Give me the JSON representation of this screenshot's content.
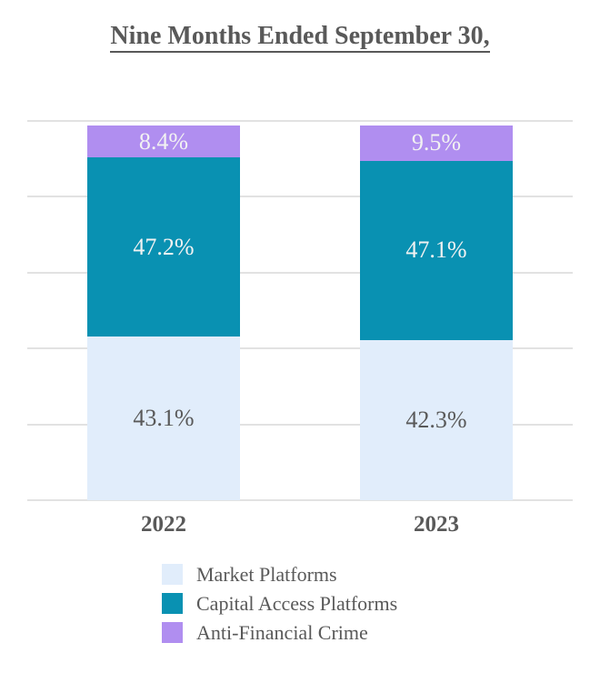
{
  "title": "Nine Months Ended September 30,",
  "colors": {
    "market_platforms": "#E1EDFB",
    "capital_access_platforms": "#0991B2",
    "anti_financial_crime": "#B08EF0",
    "gridline": "#E2E2E2",
    "text_gray": "#595959",
    "label_on_dark": "#F2F2F2"
  },
  "chart_data": {
    "type": "bar",
    "stacked": true,
    "title": "Nine Months Ended September 30,",
    "categories": [
      "2022",
      "2023"
    ],
    "series": [
      {
        "name": "Market Platforms",
        "values": [
          43.1,
          42.3
        ],
        "color": "#E1EDFB",
        "label_color": "#595959"
      },
      {
        "name": "Capital Access Platforms",
        "values": [
          47.2,
          47.1
        ],
        "color": "#0991B2",
        "label_color": "#F2F2F2"
      },
      {
        "name": "Anti-Financial Crime",
        "values": [
          8.4,
          9.5
        ],
        "color": "#B08EF0",
        "label_color": "#F2F2F2"
      }
    ],
    "value_suffix": "%",
    "value_decimals": 1,
    "ylim": [
      0,
      100
    ],
    "gridlines": [
      0,
      20,
      40,
      60,
      80,
      100
    ],
    "grid": true,
    "y_axis_labels_visible": false,
    "legend_position": "bottom-left"
  }
}
